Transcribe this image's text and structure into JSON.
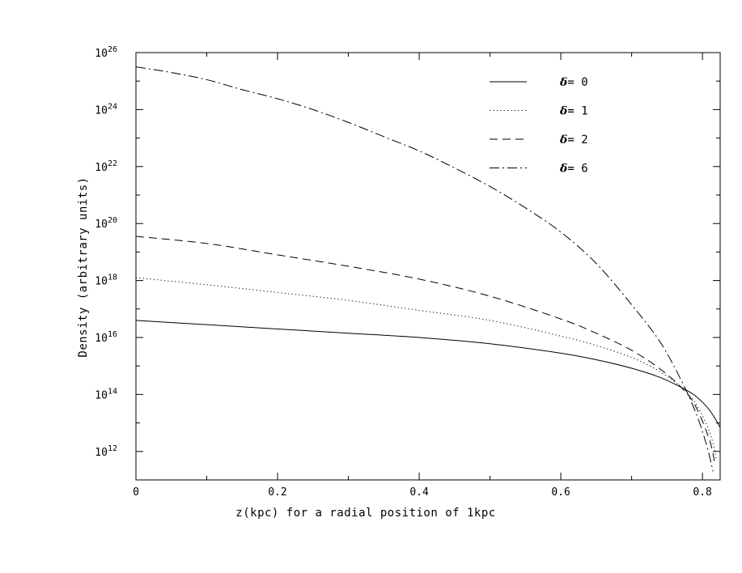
{
  "chart_data": {
    "type": "line",
    "xlabel": "z(kpc) for a radial position of 1kpc",
    "ylabel": "Density (arbitrary units)",
    "xlim": [
      0,
      0.825
    ],
    "ylim_log10": [
      11,
      26
    ],
    "y_scale": "log",
    "x_ticks": [
      {
        "value": 0,
        "label": "0"
      },
      {
        "value": 0.2,
        "label": "0.2"
      },
      {
        "value": 0.4,
        "label": "0.4"
      },
      {
        "value": 0.6,
        "label": "0.6"
      },
      {
        "value": 0.8,
        "label": "0.8"
      }
    ],
    "y_ticks": [
      {
        "exp": 12,
        "base": "10",
        "sup": "12"
      },
      {
        "exp": 14,
        "base": "10",
        "sup": "14"
      },
      {
        "exp": 16,
        "base": "10",
        "sup": "16"
      },
      {
        "exp": 18,
        "base": "10",
        "sup": "18"
      },
      {
        "exp": 20,
        "base": "10",
        "sup": "20"
      },
      {
        "exp": 22,
        "base": "10",
        "sup": "22"
      },
      {
        "exp": 24,
        "base": "10",
        "sup": "24"
      },
      {
        "exp": 26,
        "base": "10",
        "sup": "26"
      }
    ],
    "legend_position": "top-right",
    "series": [
      {
        "name": "δ= 0",
        "symbol": "δ",
        "value": "= 0",
        "dash": "solid",
        "x": [
          0,
          0.1,
          0.2,
          0.3,
          0.4,
          0.5,
          0.6,
          0.65,
          0.7,
          0.74,
          0.77,
          0.79,
          0.81,
          0.825
        ],
        "log10_y": [
          16.6,
          16.45,
          16.3,
          16.15,
          16.0,
          15.78,
          15.45,
          15.22,
          14.92,
          14.6,
          14.25,
          13.95,
          13.45,
          12.85
        ]
      },
      {
        "name": "δ= 1",
        "symbol": "δ",
        "value": "= 1",
        "dash": "dotted",
        "x": [
          0,
          0.1,
          0.2,
          0.3,
          0.4,
          0.5,
          0.6,
          0.65,
          0.7,
          0.74,
          0.77,
          0.79,
          0.81,
          0.82
        ],
        "log10_y": [
          18.1,
          17.85,
          17.58,
          17.3,
          16.95,
          16.6,
          16.05,
          15.72,
          15.3,
          14.8,
          14.25,
          13.7,
          12.7,
          11.7
        ]
      },
      {
        "name": "δ= 2",
        "symbol": "δ",
        "value": "= 2",
        "dash": "dashed",
        "x": [
          0,
          0.1,
          0.2,
          0.3,
          0.4,
          0.5,
          0.6,
          0.65,
          0.7,
          0.74,
          0.77,
          0.79,
          0.81,
          0.818
        ],
        "log10_y": [
          19.55,
          19.3,
          18.9,
          18.5,
          18.05,
          17.45,
          16.65,
          16.15,
          15.55,
          14.9,
          14.25,
          13.6,
          12.4,
          11.5
        ]
      },
      {
        "name": "δ= 6",
        "symbol": "δ",
        "value": "= 6",
        "dash": "dashdot",
        "x": [
          0,
          0.05,
          0.1,
          0.15,
          0.2,
          0.25,
          0.3,
          0.35,
          0.4,
          0.45,
          0.5,
          0.55,
          0.6,
          0.65,
          0.7,
          0.74,
          0.77,
          0.79,
          0.805,
          0.815
        ],
        "log10_y": [
          25.5,
          25.3,
          25.05,
          24.7,
          24.38,
          24.0,
          23.55,
          23.05,
          22.55,
          21.95,
          21.3,
          20.55,
          19.7,
          18.6,
          17.15,
          15.85,
          14.5,
          13.4,
          12.3,
          11.3
        ]
      }
    ]
  }
}
